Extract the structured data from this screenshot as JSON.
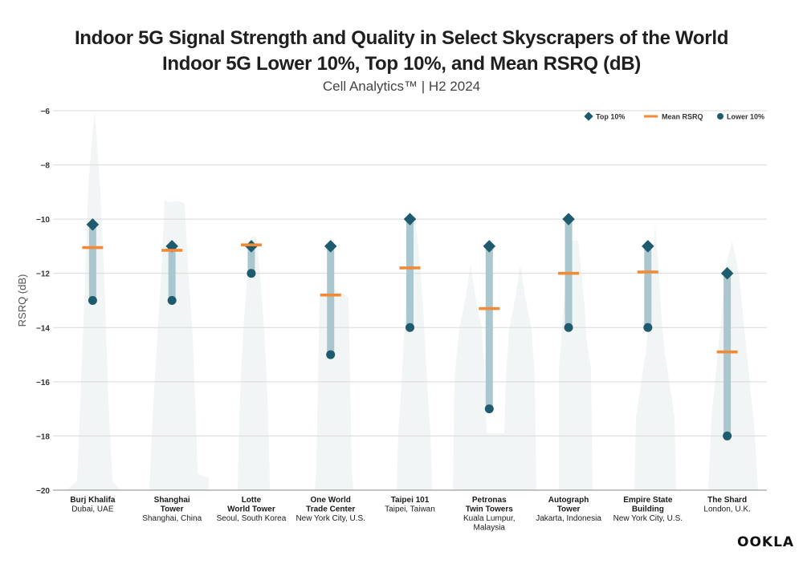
{
  "title": "Indoor 5G Signal Strength and Quality in Select Skyscrapers of the World",
  "subtitle1": "Indoor 5G Lower 10%, Top 10%, and Mean RSRQ (dB)",
  "subtitle2": "Cell Analytics™ | H2 2024",
  "logo": "OOKLA",
  "colors": {
    "top": "#1e5b6e",
    "mean": "#f28a35",
    "lower": "#1e5b6e",
    "bar": "#aac6ce",
    "silhouette": "#f1f5f5",
    "grid": "#d9d9d9"
  },
  "chart_data": {
    "type": "range",
    "title": "Indoor 5G Signal Strength and Quality in Select Skyscrapers of the World",
    "ylabel": "RSRQ (dB)",
    "ylim": [
      -20,
      -6
    ],
    "yticks": [
      -6,
      -8,
      -10,
      -12,
      -14,
      -16,
      -18,
      -20
    ],
    "grid": true,
    "legend_position": "top-right",
    "legend": [
      "Top 10%",
      "Mean RSRQ",
      "Lower 10%"
    ],
    "categories": [
      {
        "name": [
          "Burj Khalifa"
        ],
        "location": [
          "Dubai, UAE"
        ]
      },
      {
        "name": [
          "Shanghai",
          "Tower"
        ],
        "location": [
          "Shanghai, China"
        ]
      },
      {
        "name": [
          "Lotte",
          "World Tower"
        ],
        "location": [
          "Seoul, South Korea"
        ]
      },
      {
        "name": [
          "One World",
          "Trade Center"
        ],
        "location": [
          "New York City, U.S."
        ]
      },
      {
        "name": [
          "Taipei 101"
        ],
        "location": [
          "Taipei, Taiwan"
        ]
      },
      {
        "name": [
          "Petronas",
          "Twin Towers"
        ],
        "location": [
          "Kuala Lumpur,",
          "Malaysia"
        ]
      },
      {
        "name": [
          "Autograph",
          "Tower"
        ],
        "location": [
          "Jakarta, Indonesia"
        ]
      },
      {
        "name": [
          "Empire State",
          "Building"
        ],
        "location": [
          "New York City, U.S."
        ]
      },
      {
        "name": [
          "The Shard"
        ],
        "location": [
          "London, U.K."
        ]
      }
    ],
    "series": [
      {
        "name": "Top 10%",
        "values": [
          -10.2,
          -11,
          -11,
          -11,
          -10,
          -11,
          -10,
          -11,
          -12
        ]
      },
      {
        "name": "Mean RSRQ",
        "values": [
          -11.05,
          -11.15,
          -10.95,
          -12.8,
          -11.8,
          -13.3,
          -12,
          -11.95,
          -14.9
        ]
      },
      {
        "name": "Lower 10%",
        "values": [
          -13,
          -13,
          -12,
          -15,
          -14,
          -17,
          -14,
          -14,
          -18
        ]
      }
    ]
  }
}
